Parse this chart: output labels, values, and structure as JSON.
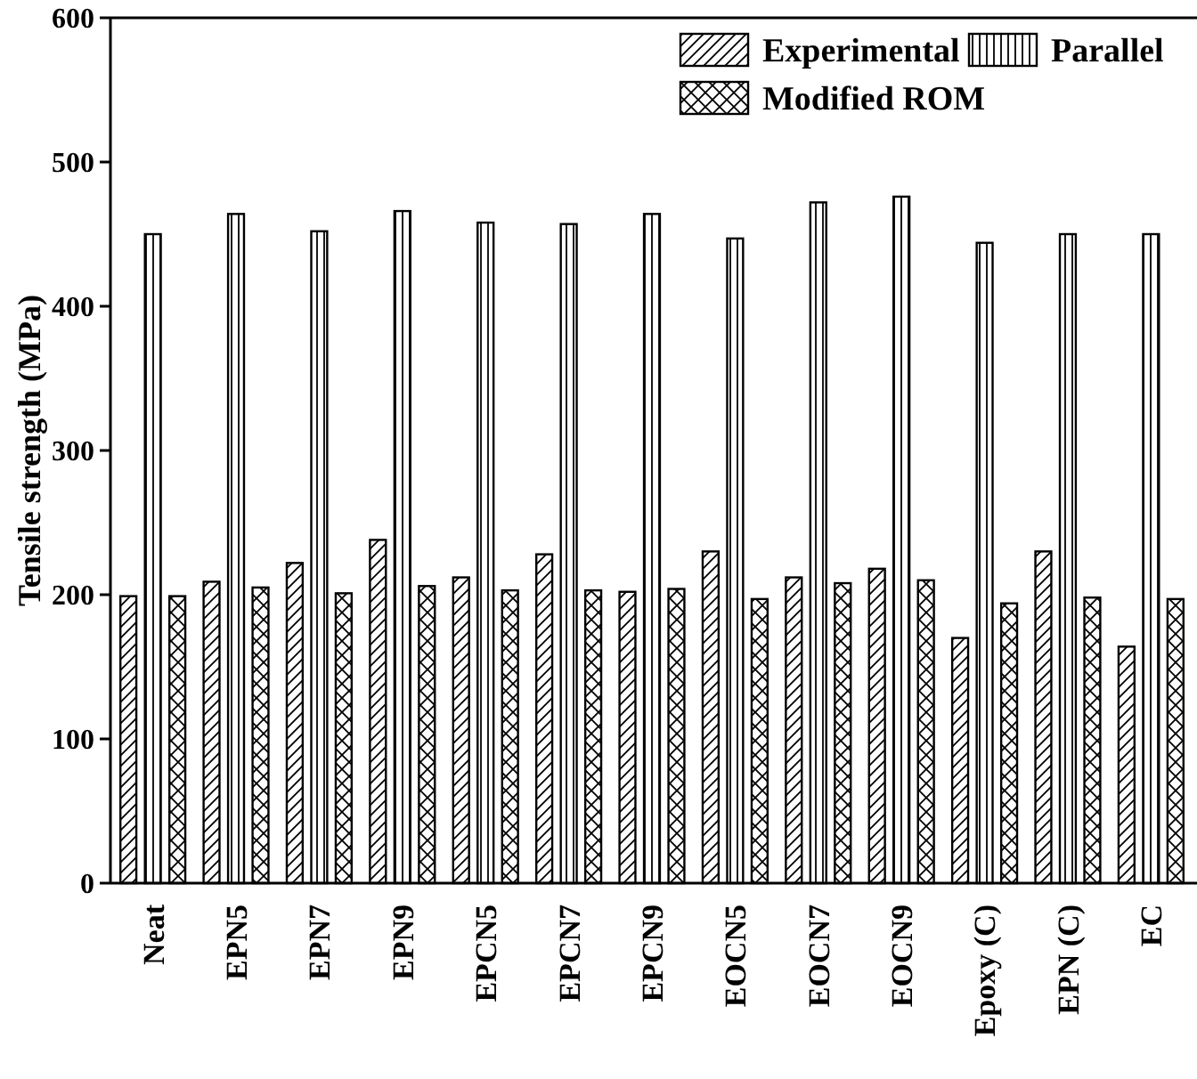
{
  "chart_data": {
    "type": "bar",
    "ylabel": "Tensile strength (MPa)",
    "categories": [
      "Neat",
      "EPN5",
      "EPN7",
      "EPN9",
      "EPCN5",
      "EPCN7",
      "EPCN9",
      "EOCN5",
      "EOCN7",
      "EOCN9",
      "Epoxy (C)",
      "EPN (C)",
      "EC"
    ],
    "series": [
      {
        "name": "Experimental",
        "color": "#000000",
        "values": [
          199,
          209,
          222,
          238,
          212,
          228,
          202,
          230,
          212,
          218,
          170,
          230,
          164
        ]
      },
      {
        "name": "Parallel",
        "color": "#000000",
        "values": [
          450,
          464,
          452,
          466,
          458,
          457,
          464,
          447,
          472,
          476,
          444,
          450,
          450
        ]
      },
      {
        "name": "Modified ROM",
        "color": "#000000",
        "values": [
          199,
          205,
          201,
          206,
          203,
          203,
          204,
          197,
          208,
          210,
          194,
          198,
          197
        ]
      }
    ],
    "ylim": [
      0,
      600
    ],
    "yticks": [
      0,
      100,
      200,
      300,
      400,
      500,
      600
    ],
    "legend": "top right"
  }
}
